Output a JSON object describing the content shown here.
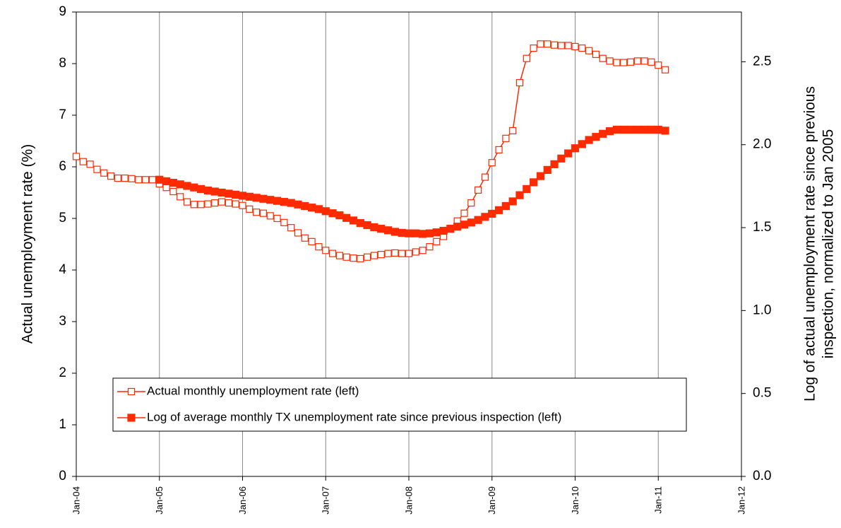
{
  "chart_data": {
    "type": "line",
    "ylabel": "Actual unemployment rate (%)",
    "y2label": [
      "Log of actual unemployment rate since previous",
      "inspection, normalized to Jan 2005"
    ],
    "xlim": [
      "2004-01",
      "2012-01"
    ],
    "xticks": [
      {
        "value": "2004-01",
        "label": "Jan-04"
      },
      {
        "value": "2005-01",
        "label": "Jan-05"
      },
      {
        "value": "2006-01",
        "label": "Jan-06"
      },
      {
        "value": "2007-01",
        "label": "Jan-07"
      },
      {
        "value": "2008-01",
        "label": "Jan-08"
      },
      {
        "value": "2009-01",
        "label": "Jan-09"
      },
      {
        "value": "2010-01",
        "label": "Jan-10"
      },
      {
        "value": "2011-01",
        "label": "Jan-11"
      },
      {
        "value": "2012-01",
        "label": "Jan-12"
      }
    ],
    "ylim": [
      0,
      9
    ],
    "yticks": [
      0,
      1,
      2,
      3,
      4,
      5,
      6,
      7,
      8,
      9
    ],
    "y2lim": [
      0,
      2.8
    ],
    "y2ticks": [
      {
        "value": 0,
        "label": "0.0"
      },
      {
        "value": 0.5,
        "label": "0.5"
      },
      {
        "value": 1,
        "label": "1.0"
      },
      {
        "value": 1.5,
        "label": "1.5"
      },
      {
        "value": 2,
        "label": "2.0"
      },
      {
        "value": 2.5,
        "label": "2.5"
      }
    ],
    "grid": "x",
    "series": [
      {
        "name": "Actual monthly unemployment rate (left)",
        "color": "#ff2a00",
        "marker": "hollow-square",
        "start": "2004-01",
        "values": [
          6.2,
          6.1,
          6.05,
          5.95,
          5.88,
          5.82,
          5.78,
          5.78,
          5.77,
          5.75,
          5.75,
          5.75,
          5.67,
          5.6,
          5.52,
          5.42,
          5.32,
          5.27,
          5.27,
          5.28,
          5.3,
          5.32,
          5.3,
          5.28,
          5.25,
          5.18,
          5.12,
          5.1,
          5.05,
          5.0,
          4.92,
          4.82,
          4.72,
          4.62,
          4.55,
          4.45,
          4.38,
          4.32,
          4.28,
          4.25,
          4.23,
          4.22,
          4.25,
          4.28,
          4.3,
          4.32,
          4.33,
          4.32,
          4.32,
          4.35,
          4.38,
          4.45,
          4.55,
          4.65,
          4.8,
          4.95,
          5.1,
          5.3,
          5.55,
          5.8,
          6.08,
          6.33,
          6.55,
          6.7,
          7.63,
          8.1,
          8.3,
          8.38,
          8.38,
          8.36,
          8.35,
          8.35,
          8.33,
          8.3,
          8.25,
          8.18,
          8.1,
          8.05,
          8.02,
          8.02,
          8.03,
          8.05,
          8.05,
          8.03,
          7.97,
          7.88
        ]
      },
      {
        "name": "Log of average monthly TX unemployment rate since previous inspection (left)",
        "color": "#ff2a00",
        "marker": "filled-square",
        "start": "2005-01",
        "values": [
          5.75,
          5.72,
          5.69,
          5.66,
          5.63,
          5.6,
          5.57,
          5.54,
          5.52,
          5.5,
          5.48,
          5.46,
          5.44,
          5.42,
          5.4,
          5.38,
          5.36,
          5.34,
          5.32,
          5.3,
          5.27,
          5.24,
          5.21,
          5.18,
          5.14,
          5.1,
          5.06,
          5.01,
          4.96,
          4.91,
          4.87,
          4.83,
          4.8,
          4.77,
          4.74,
          4.72,
          4.71,
          4.71,
          4.7,
          4.71,
          4.73,
          4.76,
          4.8,
          4.84,
          4.88,
          4.92,
          4.97,
          5.03,
          5.09,
          5.16,
          5.24,
          5.33,
          5.45,
          5.57,
          5.7,
          5.82,
          5.94,
          6.05,
          6.16,
          6.26,
          6.36,
          6.44,
          6.52,
          6.58,
          6.64,
          6.69,
          6.72,
          6.72,
          6.72,
          6.72,
          6.72,
          6.72,
          6.72,
          6.7
        ]
      }
    ]
  }
}
